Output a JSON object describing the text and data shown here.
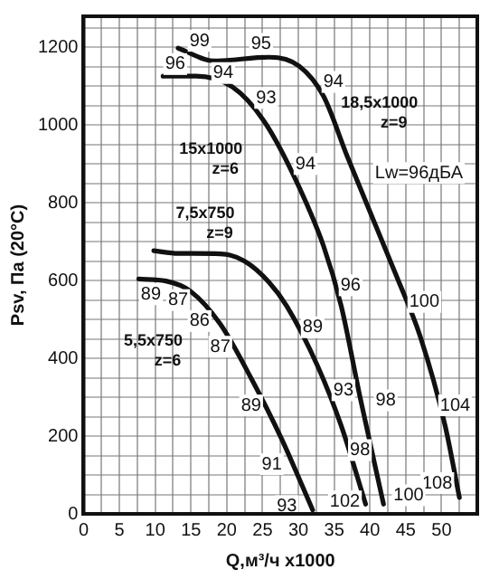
{
  "chart_data": {
    "type": "line",
    "xlabel": "Q,м³/ч x1000",
    "ylabel": "Psv, Па (20°C)",
    "xlim": [
      0,
      55
    ],
    "ylim": [
      0,
      1280
    ],
    "xticks": [
      0,
      {
        "value": 2.5,
        "label": null
      },
      5,
      {
        "value": 7.5,
        "label": null
      },
      10,
      {
        "value": 12.5,
        "label": null
      },
      15,
      {
        "value": 17.5,
        "label": null
      },
      20,
      {
        "value": 22.5,
        "label": null
      },
      25,
      {
        "value": 27.5,
        "label": null
      },
      30,
      {
        "value": 32.5,
        "label": null
      },
      35,
      {
        "value": 37.5,
        "label": null
      },
      40,
      {
        "value": 42.5,
        "label": null
      },
      45,
      {
        "value": 47.5,
        "label": null
      },
      50,
      {
        "value": 52.5,
        "label": null
      }
    ],
    "yticks": [
      0,
      {
        "value": 50,
        "label": null
      },
      {
        "value": 100,
        "label": null
      },
      {
        "value": 150,
        "label": null
      },
      200,
      {
        "value": 250,
        "label": null
      },
      {
        "value": 300,
        "label": null
      },
      {
        "value": 350,
        "label": null
      },
      400,
      {
        "value": 450,
        "label": null
      },
      {
        "value": 500,
        "label": null
      },
      {
        "value": 550,
        "label": null
      },
      600,
      {
        "value": 650,
        "label": null
      },
      {
        "value": 700,
        "label": null
      },
      {
        "value": 750,
        "label": null
      },
      800,
      {
        "value": 850,
        "label": null
      },
      {
        "value": 900,
        "label": null
      },
      {
        "value": 950,
        "label": null
      },
      1000,
      {
        "value": 1050,
        "label": null
      },
      {
        "value": 1100,
        "label": null
      },
      {
        "value": 1150,
        "label": null
      },
      1200,
      {
        "value": 1250,
        "label": null
      }
    ],
    "grid": true,
    "legend": false,
    "marker": "none",
    "line_style": "solid",
    "series": [
      {
        "name": "18,5x1000 z=9",
        "color": "#111111",
        "x": [
          13.2,
          18.3,
          25.9,
          30.1,
          33.5,
          36.8,
          43.7,
          47,
          50.5,
          52.5
        ],
        "values": [
          1198,
          1165,
          1175,
          1152,
          1075,
          921,
          612,
          458,
          227,
          42
        ]
      },
      {
        "name": "15x1000 z=6",
        "color": "#111111",
        "x": [
          11.1,
          15.7,
          20.8,
          25.1,
          29.2,
          33.5,
          36,
          38.6,
          41.9
        ],
        "values": [
          1126,
          1126,
          1098,
          1013,
          876,
          690,
          534,
          302,
          25
        ]
      },
      {
        "name": "7,5x750 z=9",
        "color": "#111111",
        "x": [
          9.8,
          13.2,
          19.1,
          22.5,
          25.9,
          28.4,
          32.7,
          36,
          39.4
        ],
        "values": [
          677,
          670,
          669,
          650,
          596,
          534,
          380,
          226,
          25
        ]
      },
      {
        "name": "5,5x750 z=6",
        "color": "#111111",
        "x": [
          7.7,
          11.5,
          14.9,
          19.1,
          23.4,
          27.6,
          32
        ],
        "values": [
          604,
          599,
          573,
          488,
          349,
          195,
          10
        ]
      }
    ],
    "annotations": [
      {
        "text": "99",
        "x": 16.2,
        "y": 1217
      },
      {
        "text": "95",
        "x": 24.8,
        "y": 1209
      },
      {
        "text": "96",
        "x": 12.8,
        "y": 1157
      },
      {
        "text": "94",
        "x": 19.5,
        "y": 1134
      },
      {
        "text": "94",
        "x": 34.9,
        "y": 1111
      },
      {
        "text": "93",
        "x": 25.5,
        "y": 1070
      },
      {
        "text": "94",
        "x": 31,
        "y": 900
      },
      "Lw=96дБА",
      {
        "text": "96",
        "x": 37.3,
        "y": 588
      },
      {
        "text": "89",
        "x": 9.4,
        "y": 565
      },
      {
        "text": "87",
        "x": 13.2,
        "y": 550
      },
      {
        "text": "100",
        "x": 47.6,
        "y": 545
      },
      {
        "text": "86",
        "x": 16.2,
        "y": 496
      },
      {
        "text": "89",
        "x": 32,
        "y": 480
      },
      {
        "text": "87",
        "x": 19.1,
        "y": 430
      },
      {
        "text": "93",
        "x": 36.3,
        "y": 318
      },
      {
        "text": "98",
        "x": 42.2,
        "y": 292
      },
      {
        "text": "104",
        "x": 51.9,
        "y": 279
      },
      {
        "text": "89",
        "x": 23.4,
        "y": 279
      },
      {
        "text": "98",
        "x": 38.6,
        "y": 164
      },
      {
        "text": "91",
        "x": 26.3,
        "y": 128
      },
      {
        "text": "108",
        "x": 49.4,
        "y": 79
      },
      {
        "text": "102",
        "x": 36.5,
        "y": 32
      },
      {
        "text": "100",
        "x": 45.4,
        "y": 48
      },
      {
        "text": "93",
        "x": 28.4,
        "y": 20
      }
    ]
  }
}
